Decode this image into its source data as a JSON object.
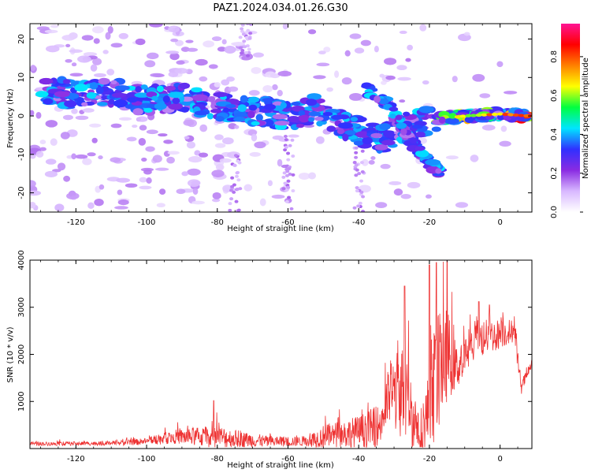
{
  "figure_title": "PAZ1.2024.034.01.26.G30",
  "chart_data": [
    {
      "type": "heatmap",
      "title": "PAZ1.2024.034.01.26.G30",
      "xlabel": "Height of straight line (km)",
      "ylabel": "Frequency (Hz)",
      "xlim": [
        -133,
        9
      ],
      "ylim": [
        -25,
        24
      ],
      "xticks": [
        -120,
        -100,
        -80,
        -60,
        -40,
        -20,
        0
      ],
      "yticks": [
        -20,
        -10,
        0,
        10,
        20
      ],
      "colorbar": {
        "label": "Normalized spectral amplitude",
        "range": [
          0,
          0.97
        ],
        "ticks": [
          "0.0",
          "0.2",
          "0.4",
          "0.6",
          "0.8"
        ],
        "colors": [
          "#ffffff",
          "#d8b8ff",
          "#8a2be2",
          "#3030ff",
          "#00e5ff",
          "#00ff40",
          "#ffff00",
          "#ff8000",
          "#ff0000",
          "#ff1493"
        ]
      },
      "ridge": [
        {
          "x": -128,
          "f": 7
        },
        {
          "x": -120,
          "f": 5
        },
        {
          "x": -110,
          "f": 6
        },
        {
          "x": -100,
          "f": 4
        },
        {
          "x": -90,
          "f": 5
        },
        {
          "x": -82,
          "f": 3
        },
        {
          "x": -75,
          "f": 2
        },
        {
          "x": -66,
          "f": 1
        },
        {
          "x": -58,
          "f": 0
        },
        {
          "x": -52,
          "f": 2
        },
        {
          "x": -47,
          "f": -1
        },
        {
          "x": -42,
          "f": -3
        },
        {
          "x": -38,
          "f": -5
        },
        {
          "x": -34,
          "f": -6
        },
        {
          "x": -27,
          "f": -3
        },
        {
          "x": -22,
          "f": -2
        },
        {
          "x": -18,
          "f": -1
        },
        {
          "x": -10,
          "f": 0
        },
        {
          "x": 0,
          "f": 0.5
        },
        {
          "x": 8,
          "f": 0
        }
      ],
      "secondary_ridge": [
        {
          "x": -38,
          "f": 7
        },
        {
          "x": -33,
          "f": 4
        },
        {
          "x": -28,
          "f": -2
        },
        {
          "x": -25,
          "f": -7
        },
        {
          "x": -20,
          "f": -12
        },
        {
          "x": -17,
          "f": -15
        }
      ]
    },
    {
      "type": "line",
      "xlabel": "Height of straight line (km)",
      "ylabel": "SNR (10 * v/v)",
      "xlim": [
        -133,
        9
      ],
      "ylim": [
        0,
        4000
      ],
      "xticks": [
        -120,
        -100,
        -80,
        -60,
        -40,
        -20,
        0
      ],
      "yticks": [
        1000,
        2000,
        3000,
        4000
      ],
      "color": "#ee3333",
      "envelope": [
        {
          "x": -133,
          "base": 100,
          "amp": 80
        },
        {
          "x": -110,
          "base": 110,
          "amp": 90
        },
        {
          "x": -100,
          "base": 150,
          "amp": 150
        },
        {
          "x": -92,
          "base": 250,
          "amp": 300
        },
        {
          "x": -80,
          "base": 250,
          "amp": 500
        },
        {
          "x": -74,
          "base": 200,
          "amp": 350
        },
        {
          "x": -66,
          "base": 150,
          "amp": 250
        },
        {
          "x": -55,
          "base": 150,
          "amp": 200
        },
        {
          "x": -50,
          "base": 250,
          "amp": 500
        },
        {
          "x": -45,
          "base": 300,
          "amp": 600
        },
        {
          "x": -40,
          "base": 350,
          "amp": 700
        },
        {
          "x": -34,
          "base": 500,
          "amp": 900
        },
        {
          "x": -31,
          "base": 1200,
          "amp": 1400
        },
        {
          "x": -27,
          "base": 1200,
          "amp": 2200
        },
        {
          "x": -23,
          "base": 300,
          "amp": 800
        },
        {
          "x": -20,
          "base": 800,
          "amp": 1800
        },
        {
          "x": -18,
          "base": 1500,
          "amp": 2500
        },
        {
          "x": -15,
          "base": 2000,
          "amp": 2000
        },
        {
          "x": -12,
          "base": 1700,
          "amp": 800
        },
        {
          "x": -7,
          "base": 2300,
          "amp": 900
        },
        {
          "x": -2,
          "base": 2400,
          "amp": 700
        },
        {
          "x": 4,
          "base": 2500,
          "amp": 500
        },
        {
          "x": 6,
          "base": 1300,
          "amp": 300
        },
        {
          "x": 9,
          "base": 1800,
          "amp": 200
        }
      ],
      "peaks": [
        {
          "x": -81,
          "y": 1020
        },
        {
          "x": -27,
          "y": 3450
        },
        {
          "x": -20,
          "y": 3900
        },
        {
          "x": -18,
          "y": 3950
        },
        {
          "x": -15,
          "y": 4000
        },
        {
          "x": -6,
          "y": 3120
        },
        {
          "x": -3,
          "y": 3050
        }
      ]
    }
  ]
}
